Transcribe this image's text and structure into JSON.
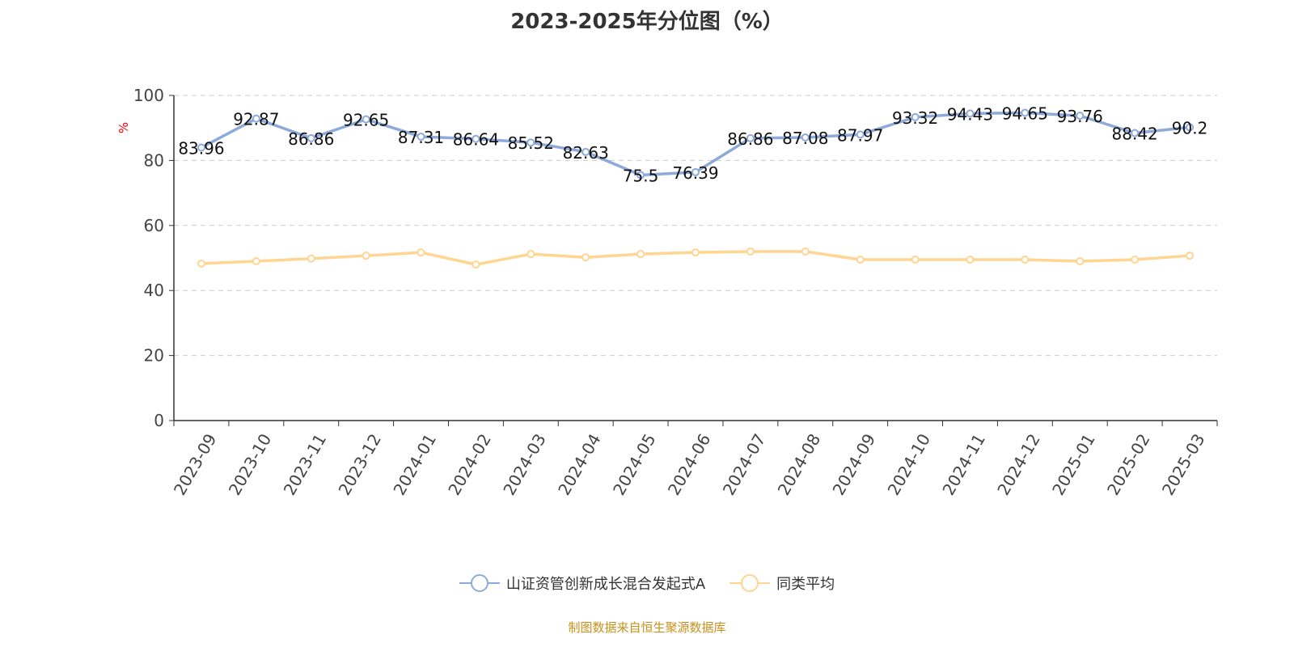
{
  "chart_data": {
    "type": "line",
    "title": "2023-2025年分位图（%）",
    "ylabel": "%",
    "ylim": [
      0,
      100
    ],
    "yticks": [
      0,
      20,
      40,
      60,
      80,
      100
    ],
    "grid": true,
    "legend_position": "bottom",
    "categories": [
      "2023-09",
      "2023-10",
      "2023-11",
      "2023-12",
      "2024-01",
      "2024-02",
      "2024-03",
      "2024-04",
      "2024-05",
      "2024-06",
      "2024-07",
      "2024-08",
      "2024-09",
      "2024-10",
      "2024-11",
      "2024-12",
      "2025-01",
      "2025-02",
      "2025-03"
    ],
    "series": [
      {
        "name": "山证资管创新成长混合发起式A",
        "color": "#8eaadb",
        "labels": true,
        "values": [
          83.96,
          92.87,
          86.86,
          92.65,
          87.31,
          86.64,
          85.52,
          82.63,
          75.5,
          76.39,
          86.86,
          87.08,
          87.97,
          93.32,
          94.43,
          94.65,
          93.76,
          88.42,
          90.2
        ]
      },
      {
        "name": "同类平均",
        "color": "#ffd591",
        "labels": false,
        "values": [
          48.3,
          49.0,
          49.8,
          50.7,
          51.7,
          48.0,
          51.2,
          50.2,
          51.2,
          51.7,
          52.0,
          52.0,
          49.5,
          49.5,
          49.5,
          49.5,
          49.0,
          49.5,
          50.7
        ]
      }
    ]
  },
  "footer": "制图数据来自恒生聚源数据库"
}
